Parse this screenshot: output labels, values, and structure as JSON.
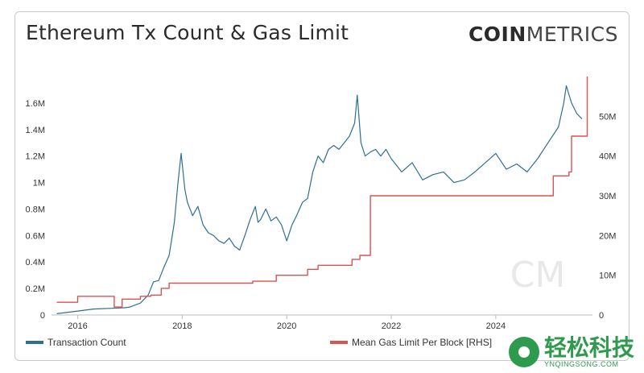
{
  "header": {
    "title": "Ethereum Tx Count & Gas Limit",
    "brand_bold": "COIN",
    "brand_light": "METRICS"
  },
  "watermark": {
    "chinese": "轻松科技",
    "english": "YNQINGSONG.COM"
  },
  "colors": {
    "tx": "#2f6f93",
    "gas": "#d9534f",
    "grid": "#e6e6e6",
    "axis_text": "#333333",
    "bg_mark": "#e8e8e8"
  },
  "chart_data": {
    "type": "line",
    "title": "Ethereum Tx Count & Gas Limit",
    "xlabel": "",
    "ylabel_left": "",
    "ylabel_right": "",
    "xlim": [
      2015.5,
      2025.85
    ],
    "ylim_left": [
      0,
      1800000
    ],
    "ylim_right": [
      0,
      60
    ],
    "x_ticks": [
      {
        "value": 2016,
        "label": "2016"
      },
      {
        "value": 2018,
        "label": "2018"
      },
      {
        "value": 2020,
        "label": "2020"
      },
      {
        "value": 2022,
        "label": "2022"
      },
      {
        "value": 2024,
        "label": "2024"
      }
    ],
    "y_left_ticks": [
      {
        "value": 0,
        "label": "0"
      },
      {
        "value": 200000,
        "label": "0.2M"
      },
      {
        "value": 400000,
        "label": "0.4M"
      },
      {
        "value": 600000,
        "label": "0.6M"
      },
      {
        "value": 800000,
        "label": "0.8M"
      },
      {
        "value": 1000000,
        "label": "1M"
      },
      {
        "value": 1200000,
        "label": "1.2M"
      },
      {
        "value": 1400000,
        "label": "1.4M"
      },
      {
        "value": 1600000,
        "label": "1.6M"
      }
    ],
    "y_right_ticks": [
      {
        "value": 0,
        "label": "0"
      },
      {
        "value": 10,
        "label": "10M"
      },
      {
        "value": 20,
        "label": "20M"
      },
      {
        "value": 30,
        "label": "30M"
      },
      {
        "value": 40,
        "label": "40M"
      },
      {
        "value": 50,
        "label": "50M"
      }
    ],
    "series": [
      {
        "name": "Transaction Count",
        "axis": "left",
        "points": [
          [
            2015.6,
            10000
          ],
          [
            2016.0,
            30000
          ],
          [
            2016.3,
            45000
          ],
          [
            2016.6,
            50000
          ],
          [
            2016.9,
            55000
          ],
          [
            2017.0,
            60000
          ],
          [
            2017.2,
            90000
          ],
          [
            2017.35,
            150000
          ],
          [
            2017.45,
            250000
          ],
          [
            2017.55,
            260000
          ],
          [
            2017.65,
            360000
          ],
          [
            2017.75,
            450000
          ],
          [
            2017.85,
            700000
          ],
          [
            2017.92,
            1000000
          ],
          [
            2017.98,
            1220000
          ],
          [
            2018.05,
            950000
          ],
          [
            2018.1,
            850000
          ],
          [
            2018.2,
            750000
          ],
          [
            2018.3,
            820000
          ],
          [
            2018.4,
            680000
          ],
          [
            2018.5,
            620000
          ],
          [
            2018.6,
            600000
          ],
          [
            2018.7,
            560000
          ],
          [
            2018.8,
            540000
          ],
          [
            2018.9,
            580000
          ],
          [
            2019.0,
            520000
          ],
          [
            2019.1,
            490000
          ],
          [
            2019.2,
            600000
          ],
          [
            2019.3,
            720000
          ],
          [
            2019.4,
            820000
          ],
          [
            2019.45,
            700000
          ],
          [
            2019.5,
            720000
          ],
          [
            2019.6,
            800000
          ],
          [
            2019.7,
            710000
          ],
          [
            2019.8,
            740000
          ],
          [
            2019.9,
            680000
          ],
          [
            2020.0,
            560000
          ],
          [
            2020.1,
            680000
          ],
          [
            2020.2,
            760000
          ],
          [
            2020.3,
            850000
          ],
          [
            2020.4,
            880000
          ],
          [
            2020.5,
            1080000
          ],
          [
            2020.6,
            1200000
          ],
          [
            2020.7,
            1150000
          ],
          [
            2020.8,
            1250000
          ],
          [
            2020.9,
            1280000
          ],
          [
            2021.0,
            1250000
          ],
          [
            2021.1,
            1300000
          ],
          [
            2021.2,
            1350000
          ],
          [
            2021.3,
            1450000
          ],
          [
            2021.35,
            1660000
          ],
          [
            2021.42,
            1300000
          ],
          [
            2021.5,
            1200000
          ],
          [
            2021.6,
            1230000
          ],
          [
            2021.7,
            1250000
          ],
          [
            2021.8,
            1200000
          ],
          [
            2021.9,
            1250000
          ],
          [
            2022.0,
            1180000
          ],
          [
            2022.2,
            1080000
          ],
          [
            2022.4,
            1150000
          ],
          [
            2022.6,
            1020000
          ],
          [
            2022.8,
            1060000
          ],
          [
            2023.0,
            1080000
          ],
          [
            2023.2,
            1000000
          ],
          [
            2023.4,
            1020000
          ],
          [
            2023.6,
            1080000
          ],
          [
            2023.8,
            1150000
          ],
          [
            2024.0,
            1220000
          ],
          [
            2024.2,
            1100000
          ],
          [
            2024.4,
            1140000
          ],
          [
            2024.6,
            1080000
          ],
          [
            2024.8,
            1180000
          ],
          [
            2025.0,
            1300000
          ],
          [
            2025.2,
            1420000
          ],
          [
            2025.3,
            1600000
          ],
          [
            2025.35,
            1730000
          ],
          [
            2025.45,
            1600000
          ],
          [
            2025.55,
            1520000
          ],
          [
            2025.65,
            1480000
          ]
        ]
      },
      {
        "name": "Mean Gas Limit Per Block [RHS]",
        "axis": "right",
        "points": [
          [
            2015.6,
            3.2
          ],
          [
            2015.9,
            3.2
          ],
          [
            2016.0,
            4.7
          ],
          [
            2016.6,
            4.7
          ],
          [
            2016.7,
            2.0
          ],
          [
            2016.85,
            4.0
          ],
          [
            2017.1,
            4.0
          ],
          [
            2017.2,
            4.7
          ],
          [
            2017.4,
            5.0
          ],
          [
            2017.6,
            6.7
          ],
          [
            2017.75,
            8.0
          ],
          [
            2018.2,
            8.0
          ],
          [
            2018.7,
            8.0
          ],
          [
            2019.3,
            8.0
          ],
          [
            2019.35,
            8.5
          ],
          [
            2019.8,
            10.0
          ],
          [
            2020.1,
            10.0
          ],
          [
            2020.4,
            11.5
          ],
          [
            2020.6,
            12.5
          ],
          [
            2021.0,
            12.5
          ],
          [
            2021.25,
            14.0
          ],
          [
            2021.4,
            15.0
          ],
          [
            2021.6,
            30.0
          ],
          [
            2022.5,
            30.0
          ],
          [
            2023.5,
            30.0
          ],
          [
            2024.5,
            30.0
          ],
          [
            2025.0,
            30.0
          ],
          [
            2025.1,
            35.0
          ],
          [
            2025.4,
            36.0
          ],
          [
            2025.45,
            45.0
          ],
          [
            2025.72,
            45.0
          ],
          [
            2025.75,
            60.0
          ]
        ]
      }
    ],
    "legend_position": "bottom"
  },
  "legend": {
    "tx_label": "Transaction Count",
    "gas_label": "Mean Gas Limit Per Block [RHS]"
  }
}
